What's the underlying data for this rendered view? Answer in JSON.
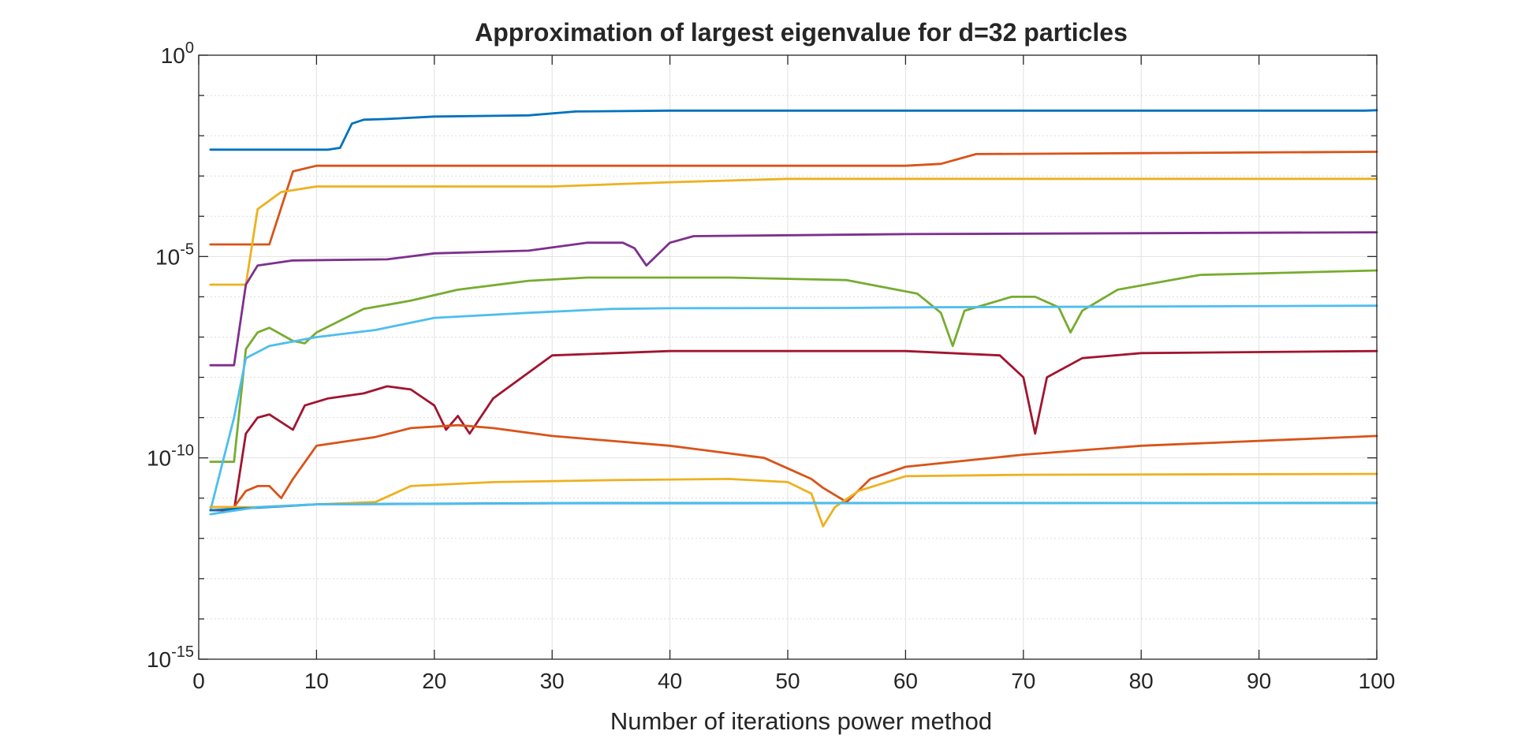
{
  "chart_data": {
    "type": "line",
    "title": "Approximation of largest eigenvalue for d=32 particles",
    "xlabel": "Number of iterations power method",
    "ylabel": "",
    "xlim": [
      0,
      100
    ],
    "ylim": [
      1e-15,
      1
    ],
    "yscale": "log",
    "grid": true,
    "legend": "none",
    "x_ticks": [
      0,
      10,
      20,
      30,
      40,
      50,
      60,
      70,
      80,
      90,
      100
    ],
    "y_ticks": [
      {
        "exp": 0,
        "value": 1,
        "base": "10",
        "sup": "0"
      },
      {
        "exp": -5,
        "value": 1e-05,
        "base": "10",
        "sup": "-5"
      },
      {
        "exp": -10,
        "value": 1e-10,
        "base": "10",
        "sup": "-10"
      },
      {
        "exp": -15,
        "value": 1e-15,
        "base": "10",
        "sup": "-15"
      }
    ],
    "series": [
      {
        "color": "#0072BD",
        "points": [
          [
            1,
            0.0045
          ],
          [
            11,
            0.0045
          ],
          [
            12,
            0.005
          ],
          [
            13,
            0.02
          ],
          [
            14,
            0.025
          ],
          [
            16,
            0.026
          ],
          [
            20,
            0.03
          ],
          [
            28,
            0.032
          ],
          [
            32,
            0.04
          ],
          [
            40,
            0.042
          ],
          [
            60,
            0.042
          ],
          [
            99,
            0.042
          ],
          [
            100,
            0.043
          ]
        ]
      },
      {
        "color": "#D95319",
        "points": [
          [
            1,
            2e-05
          ],
          [
            6,
            2e-05
          ],
          [
            8,
            0.0013
          ],
          [
            10,
            0.0018
          ],
          [
            30,
            0.0018
          ],
          [
            60,
            0.0018
          ],
          [
            63,
            0.002
          ],
          [
            66,
            0.0035
          ],
          [
            80,
            0.0037
          ],
          [
            100,
            0.004
          ]
        ]
      },
      {
        "color": "#EDB120",
        "points": [
          [
            1,
            2e-06
          ],
          [
            4,
            2e-06
          ],
          [
            5,
            0.00015
          ],
          [
            7,
            0.0004
          ],
          [
            10,
            0.00055
          ],
          [
            30,
            0.00055
          ],
          [
            40,
            0.0007
          ],
          [
            50,
            0.00085
          ],
          [
            100,
            0.00085
          ]
        ]
      },
      {
        "color": "#7E2F8E",
        "points": [
          [
            1,
            2e-08
          ],
          [
            3,
            2e-08
          ],
          [
            4,
            2e-06
          ],
          [
            5,
            6e-06
          ],
          [
            8,
            8e-06
          ],
          [
            16,
            8.5e-06
          ],
          [
            20,
            1.2e-05
          ],
          [
            28,
            1.4e-05
          ],
          [
            33,
            2.2e-05
          ],
          [
            36,
            2.2e-05
          ],
          [
            37,
            1.6e-05
          ],
          [
            38,
            6e-06
          ],
          [
            40,
            2.2e-05
          ],
          [
            42,
            3.2e-05
          ],
          [
            60,
            3.6e-05
          ],
          [
            100,
            4e-05
          ]
        ]
      },
      {
        "color": "#77AC30",
        "points": [
          [
            1,
            8e-11
          ],
          [
            3,
            8e-11
          ],
          [
            4,
            5e-08
          ],
          [
            5,
            1.3e-07
          ],
          [
            6,
            1.7e-07
          ],
          [
            8,
            8e-08
          ],
          [
            9,
            7e-08
          ],
          [
            10,
            1.3e-07
          ],
          [
            14,
            5e-07
          ],
          [
            18,
            8e-07
          ],
          [
            22,
            1.5e-06
          ],
          [
            28,
            2.5e-06
          ],
          [
            33,
            3e-06
          ],
          [
            45,
            3e-06
          ],
          [
            55,
            2.6e-06
          ],
          [
            61,
            1.2e-06
          ],
          [
            63,
            4e-07
          ],
          [
            64,
            6e-08
          ],
          [
            65,
            4.5e-07
          ],
          [
            69,
            1e-06
          ],
          [
            71,
            1e-06
          ],
          [
            73,
            5.5e-07
          ],
          [
            74,
            1.3e-07
          ],
          [
            75,
            4.5e-07
          ],
          [
            78,
            1.5e-06
          ],
          [
            85,
            3.5e-06
          ],
          [
            100,
            4.5e-06
          ]
        ]
      },
      {
        "color": "#4DBEEE",
        "points": [
          [
            1,
            5e-12
          ],
          [
            3,
            1e-09
          ],
          [
            4,
            3e-08
          ],
          [
            6,
            6e-08
          ],
          [
            10,
            1e-07
          ],
          [
            15,
            1.5e-07
          ],
          [
            20,
            3e-07
          ],
          [
            28,
            4e-07
          ],
          [
            35,
            5e-07
          ],
          [
            40,
            5.2e-07
          ],
          [
            55,
            5.3e-07
          ],
          [
            62,
            5.5e-07
          ],
          [
            100,
            6e-07
          ]
        ]
      },
      {
        "color": "#A2142F",
        "points": [
          [
            1,
            5e-12
          ],
          [
            3,
            5e-12
          ],
          [
            4,
            4e-10
          ],
          [
            5,
            1e-09
          ],
          [
            6,
            1.2e-09
          ],
          [
            8,
            5e-10
          ],
          [
            9,
            2e-09
          ],
          [
            11,
            3e-09
          ],
          [
            14,
            4e-09
          ],
          [
            16,
            6e-09
          ],
          [
            18,
            5e-09
          ],
          [
            20,
            2e-09
          ],
          [
            21,
            5e-10
          ],
          [
            22,
            1.1e-09
          ],
          [
            23,
            4e-10
          ],
          [
            25,
            3e-09
          ],
          [
            30,
            3.5e-08
          ],
          [
            40,
            4.5e-08
          ],
          [
            60,
            4.5e-08
          ],
          [
            68,
            3.5e-08
          ],
          [
            70,
            1e-08
          ],
          [
            71,
            4e-10
          ],
          [
            72,
            1e-08
          ],
          [
            75,
            3e-08
          ],
          [
            80,
            4e-08
          ],
          [
            100,
            4.5e-08
          ]
        ]
      },
      {
        "color": "#D95319",
        "points": [
          [
            1,
            6e-12
          ],
          [
            3,
            6e-12
          ],
          [
            4,
            1.5e-11
          ],
          [
            5,
            2e-11
          ],
          [
            6,
            2e-11
          ],
          [
            7,
            1e-11
          ],
          [
            8,
            3e-11
          ],
          [
            10,
            2e-10
          ],
          [
            15,
            3.3e-10
          ],
          [
            18,
            5.5e-10
          ],
          [
            22,
            6.5e-10
          ],
          [
            25,
            5.5e-10
          ],
          [
            30,
            3.5e-10
          ],
          [
            40,
            2e-10
          ],
          [
            48,
            1e-10
          ],
          [
            52,
            3e-11
          ],
          [
            53,
            1.8e-11
          ],
          [
            55,
            8e-12
          ],
          [
            57,
            3e-11
          ],
          [
            60,
            6e-11
          ],
          [
            70,
            1.2e-10
          ],
          [
            80,
            2e-10
          ],
          [
            100,
            3.5e-10
          ]
        ]
      },
      {
        "color": "#EDB120",
        "points": [
          [
            1,
            6e-12
          ],
          [
            5,
            6e-12
          ],
          [
            10,
            7e-12
          ],
          [
            15,
            8e-12
          ],
          [
            18,
            2e-11
          ],
          [
            25,
            2.5e-11
          ],
          [
            35,
            2.8e-11
          ],
          [
            45,
            3e-11
          ],
          [
            50,
            2.5e-11
          ],
          [
            52,
            1.3e-11
          ],
          [
            53,
            2e-12
          ],
          [
            54,
            6e-12
          ],
          [
            56,
            1.5e-11
          ],
          [
            60,
            3.5e-11
          ],
          [
            70,
            3.8e-11
          ],
          [
            100,
            4e-11
          ]
        ]
      },
      {
        "color": "#0072BD",
        "points": [
          [
            1,
            5e-12
          ],
          [
            10,
            7e-12
          ],
          [
            30,
            7.5e-12
          ],
          [
            100,
            7.6e-12
          ]
        ]
      },
      {
        "color": "#4DBEEE",
        "points": [
          [
            1,
            4e-12
          ],
          [
            5,
            6e-12
          ],
          [
            10,
            7e-12
          ],
          [
            30,
            7.4e-12
          ],
          [
            100,
            7.6e-12
          ]
        ]
      }
    ]
  }
}
